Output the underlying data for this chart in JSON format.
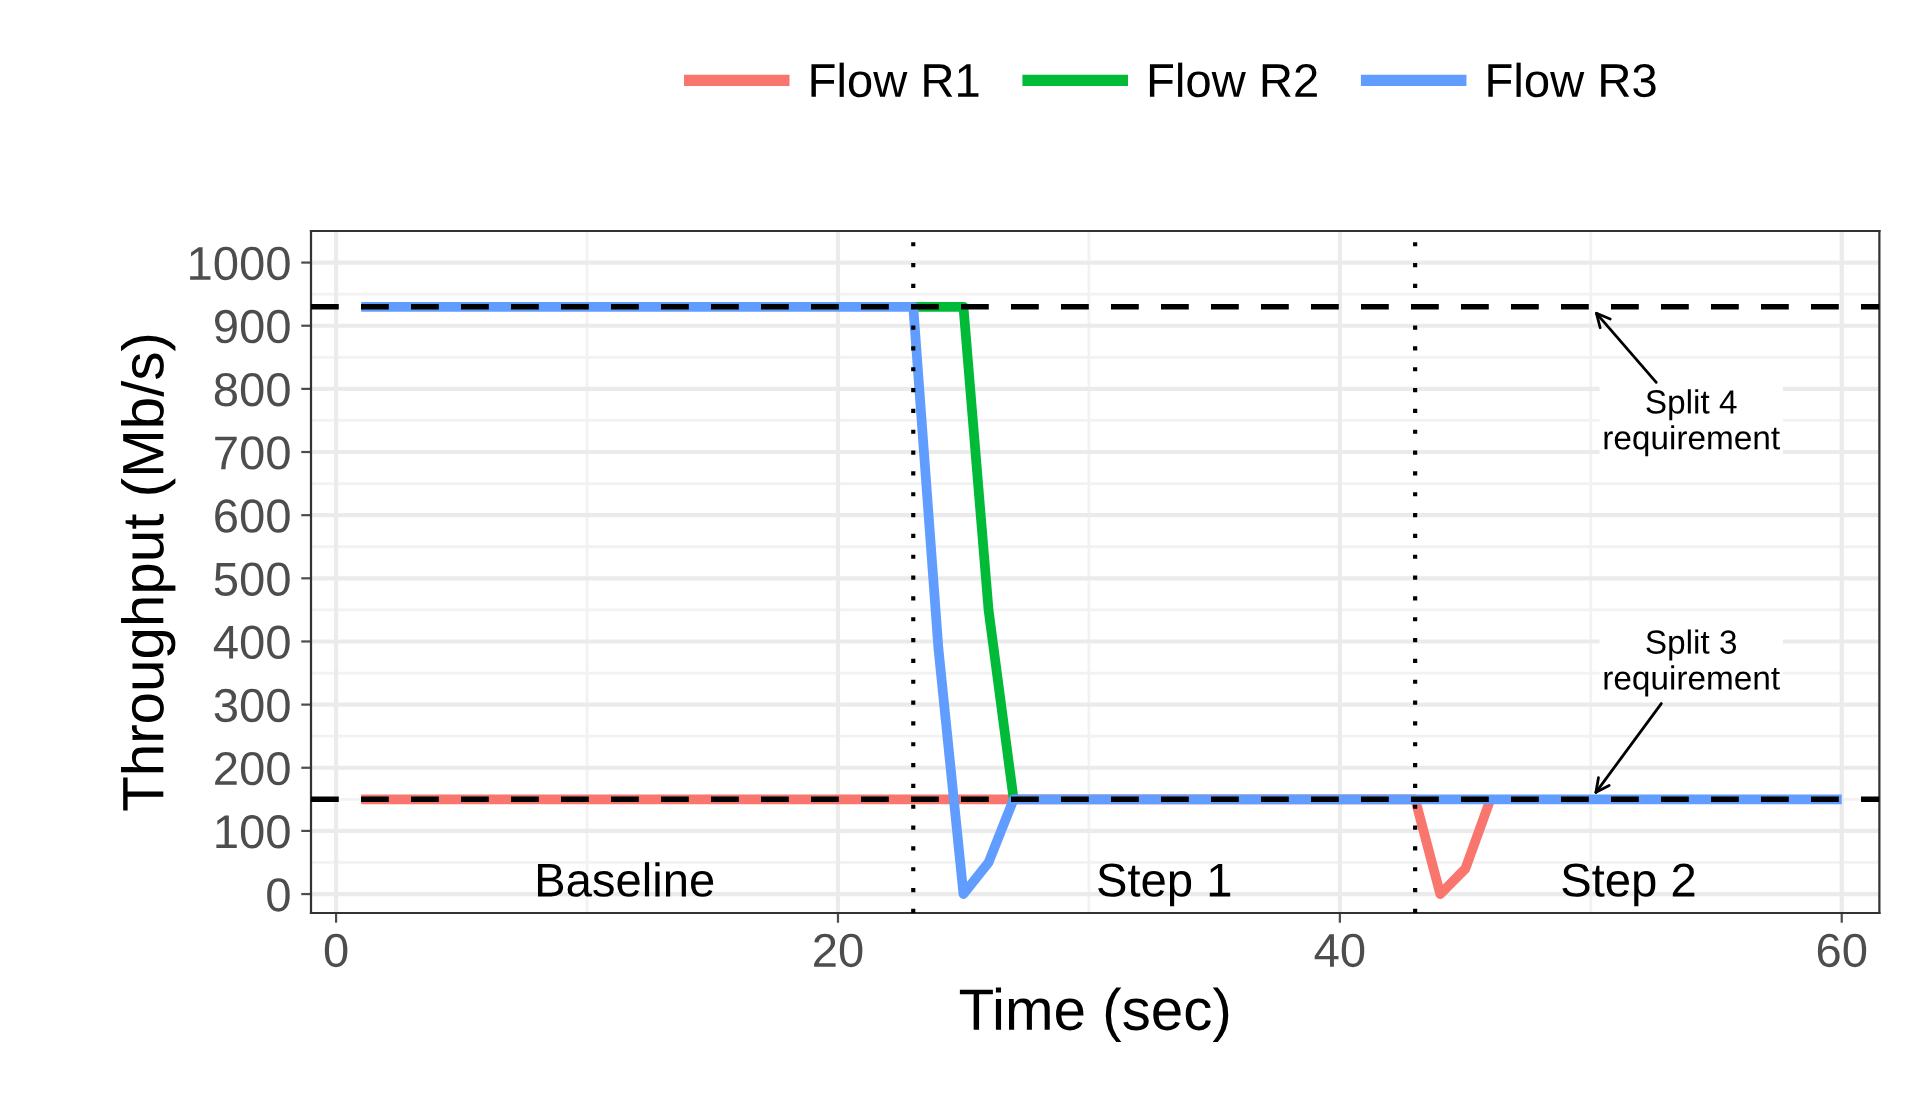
{
  "chart_data": {
    "type": "line",
    "xlabel": "Time (sec)",
    "ylabel": "Throughput (Mb/s)",
    "xlim": [
      -1,
      61.5
    ],
    "xticks": [
      0,
      20,
      40,
      60
    ],
    "ylim": [
      -30,
      1050
    ],
    "yticks": [
      0,
      100,
      200,
      300,
      400,
      500,
      600,
      700,
      800,
      900,
      1000
    ],
    "grid": true,
    "legend": "top",
    "line_style": "solid",
    "marker": "none",
    "series": [
      {
        "name": "Flow R1",
        "color": "#f8766d",
        "x": [
          1,
          43,
          44,
          45,
          46
        ],
        "values": [
          150,
          150,
          0,
          40,
          150
        ]
      },
      {
        "name": "Flow R2",
        "color": "#00ba38",
        "x": [
          23,
          25,
          26,
          27
        ],
        "values": [
          930,
          930,
          450,
          150
        ]
      },
      {
        "name": "Flow R3",
        "color": "#619cff",
        "x": [
          1,
          23,
          24,
          25,
          26,
          27,
          60
        ],
        "values": [
          930,
          930,
          390,
          0,
          50,
          150,
          150
        ]
      }
    ],
    "ref_lines": [
      {
        "axis": "y",
        "value": 930,
        "line_style": "dashed",
        "color": "#000000"
      },
      {
        "axis": "y",
        "value": 150,
        "line_style": "dashed",
        "color": "#000000"
      },
      {
        "axis": "x",
        "value": 23,
        "line_style": "dotted",
        "color": "#000000"
      },
      {
        "axis": "x",
        "value": 43,
        "line_style": "dotted",
        "color": "#000000"
      }
    ],
    "annotations": [
      "Baseline",
      "Step 1",
      "Step 2",
      {
        "text": "Split 4\nrequirement",
        "x": 50,
        "y": 930
      },
      {
        "text": "Split 3\nrequirement",
        "x": 50,
        "y": 150
      }
    ]
  }
}
